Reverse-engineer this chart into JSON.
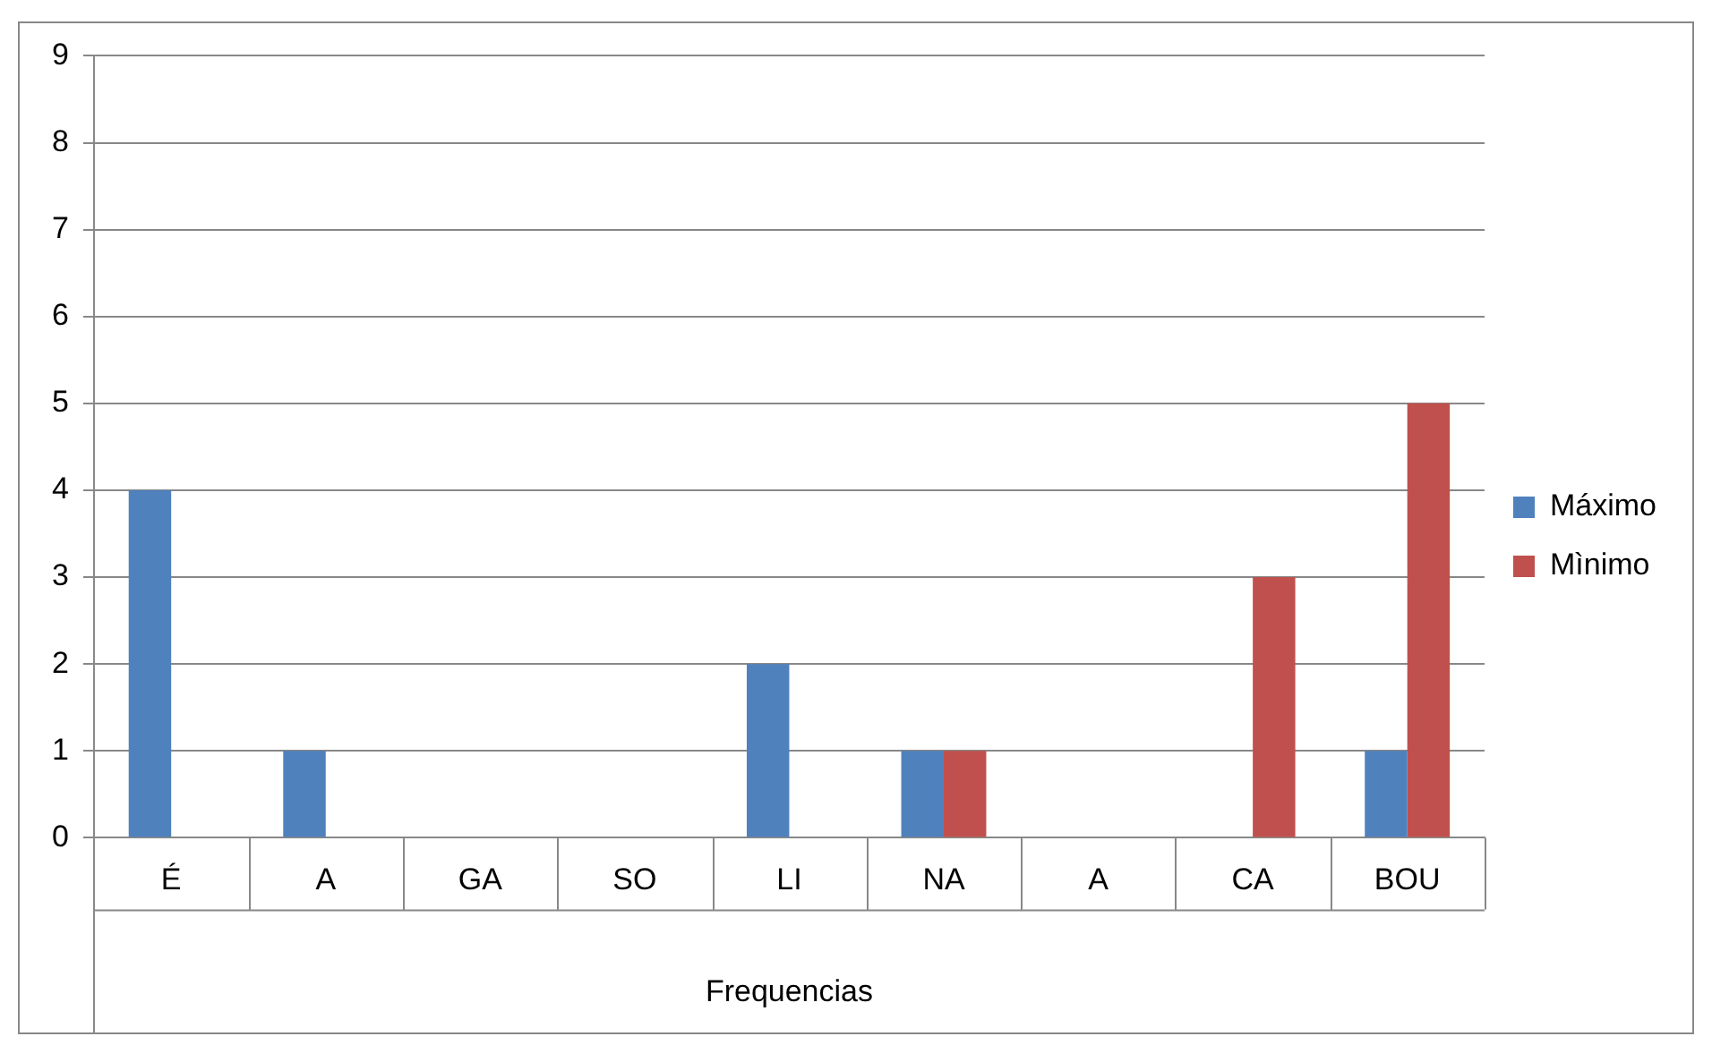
{
  "chart_data": {
    "type": "bar",
    "xlabel": "Frequencias",
    "categories": [
      "É",
      "A",
      "GA",
      "SO",
      "LI",
      "NA",
      "A",
      "CA",
      "BOU"
    ],
    "series": [
      {
        "name": "Máximo",
        "color": "#4f81bd",
        "values": [
          4,
          1,
          0,
          0,
          2,
          1,
          0,
          0,
          1
        ]
      },
      {
        "name": "Mìnimo",
        "color": "#c0504d",
        "values": [
          0,
          0,
          0,
          0,
          0,
          1,
          0,
          3,
          5
        ]
      }
    ],
    "ylim": [
      0,
      9
    ],
    "yticks": [
      0,
      1,
      2,
      3,
      4,
      5,
      6,
      7,
      8,
      9
    ],
    "grid": "y",
    "legend": "right"
  }
}
